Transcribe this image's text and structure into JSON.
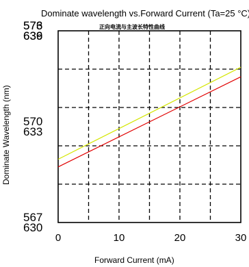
{
  "chart_data": {
    "type": "line",
    "title": "Dominate wavelength vs.Forward Current (Ta=25 °C)",
    "subtitle": "正向电流与主波长特性曲线",
    "xlabel": "Forward  Current  (mA)",
    "ylabel": "Dominate Wavelength  (nm)",
    "xlim": [
      0,
      30
    ],
    "ylim": [
      0,
      10
    ],
    "x_ticks": [
      0,
      10,
      20,
      30
    ],
    "y_ticks": [
      {
        "value": 0,
        "upper": "567",
        "lower": "630"
      },
      {
        "value": 5,
        "upper": "570",
        "lower": "633"
      },
      {
        "value": 10,
        "upper": "573",
        "lower": "636"
      },
      {
        "value": 15,
        "upper": "576",
        "lower": "639"
      }
    ],
    "grid": true,
    "x_grid": [
      0,
      5,
      10,
      15,
      20,
      25,
      30
    ],
    "y_grid": [
      0,
      2,
      4,
      6,
      8,
      10
    ],
    "series": [
      {
        "color": "#d4e600",
        "x": [
          0,
          30
        ],
        "y": [
          3.3,
          8.1
        ]
      },
      {
        "color": "#e00000",
        "x": [
          0,
          30
        ],
        "y": [
          2.9,
          7.6
        ]
      }
    ]
  }
}
